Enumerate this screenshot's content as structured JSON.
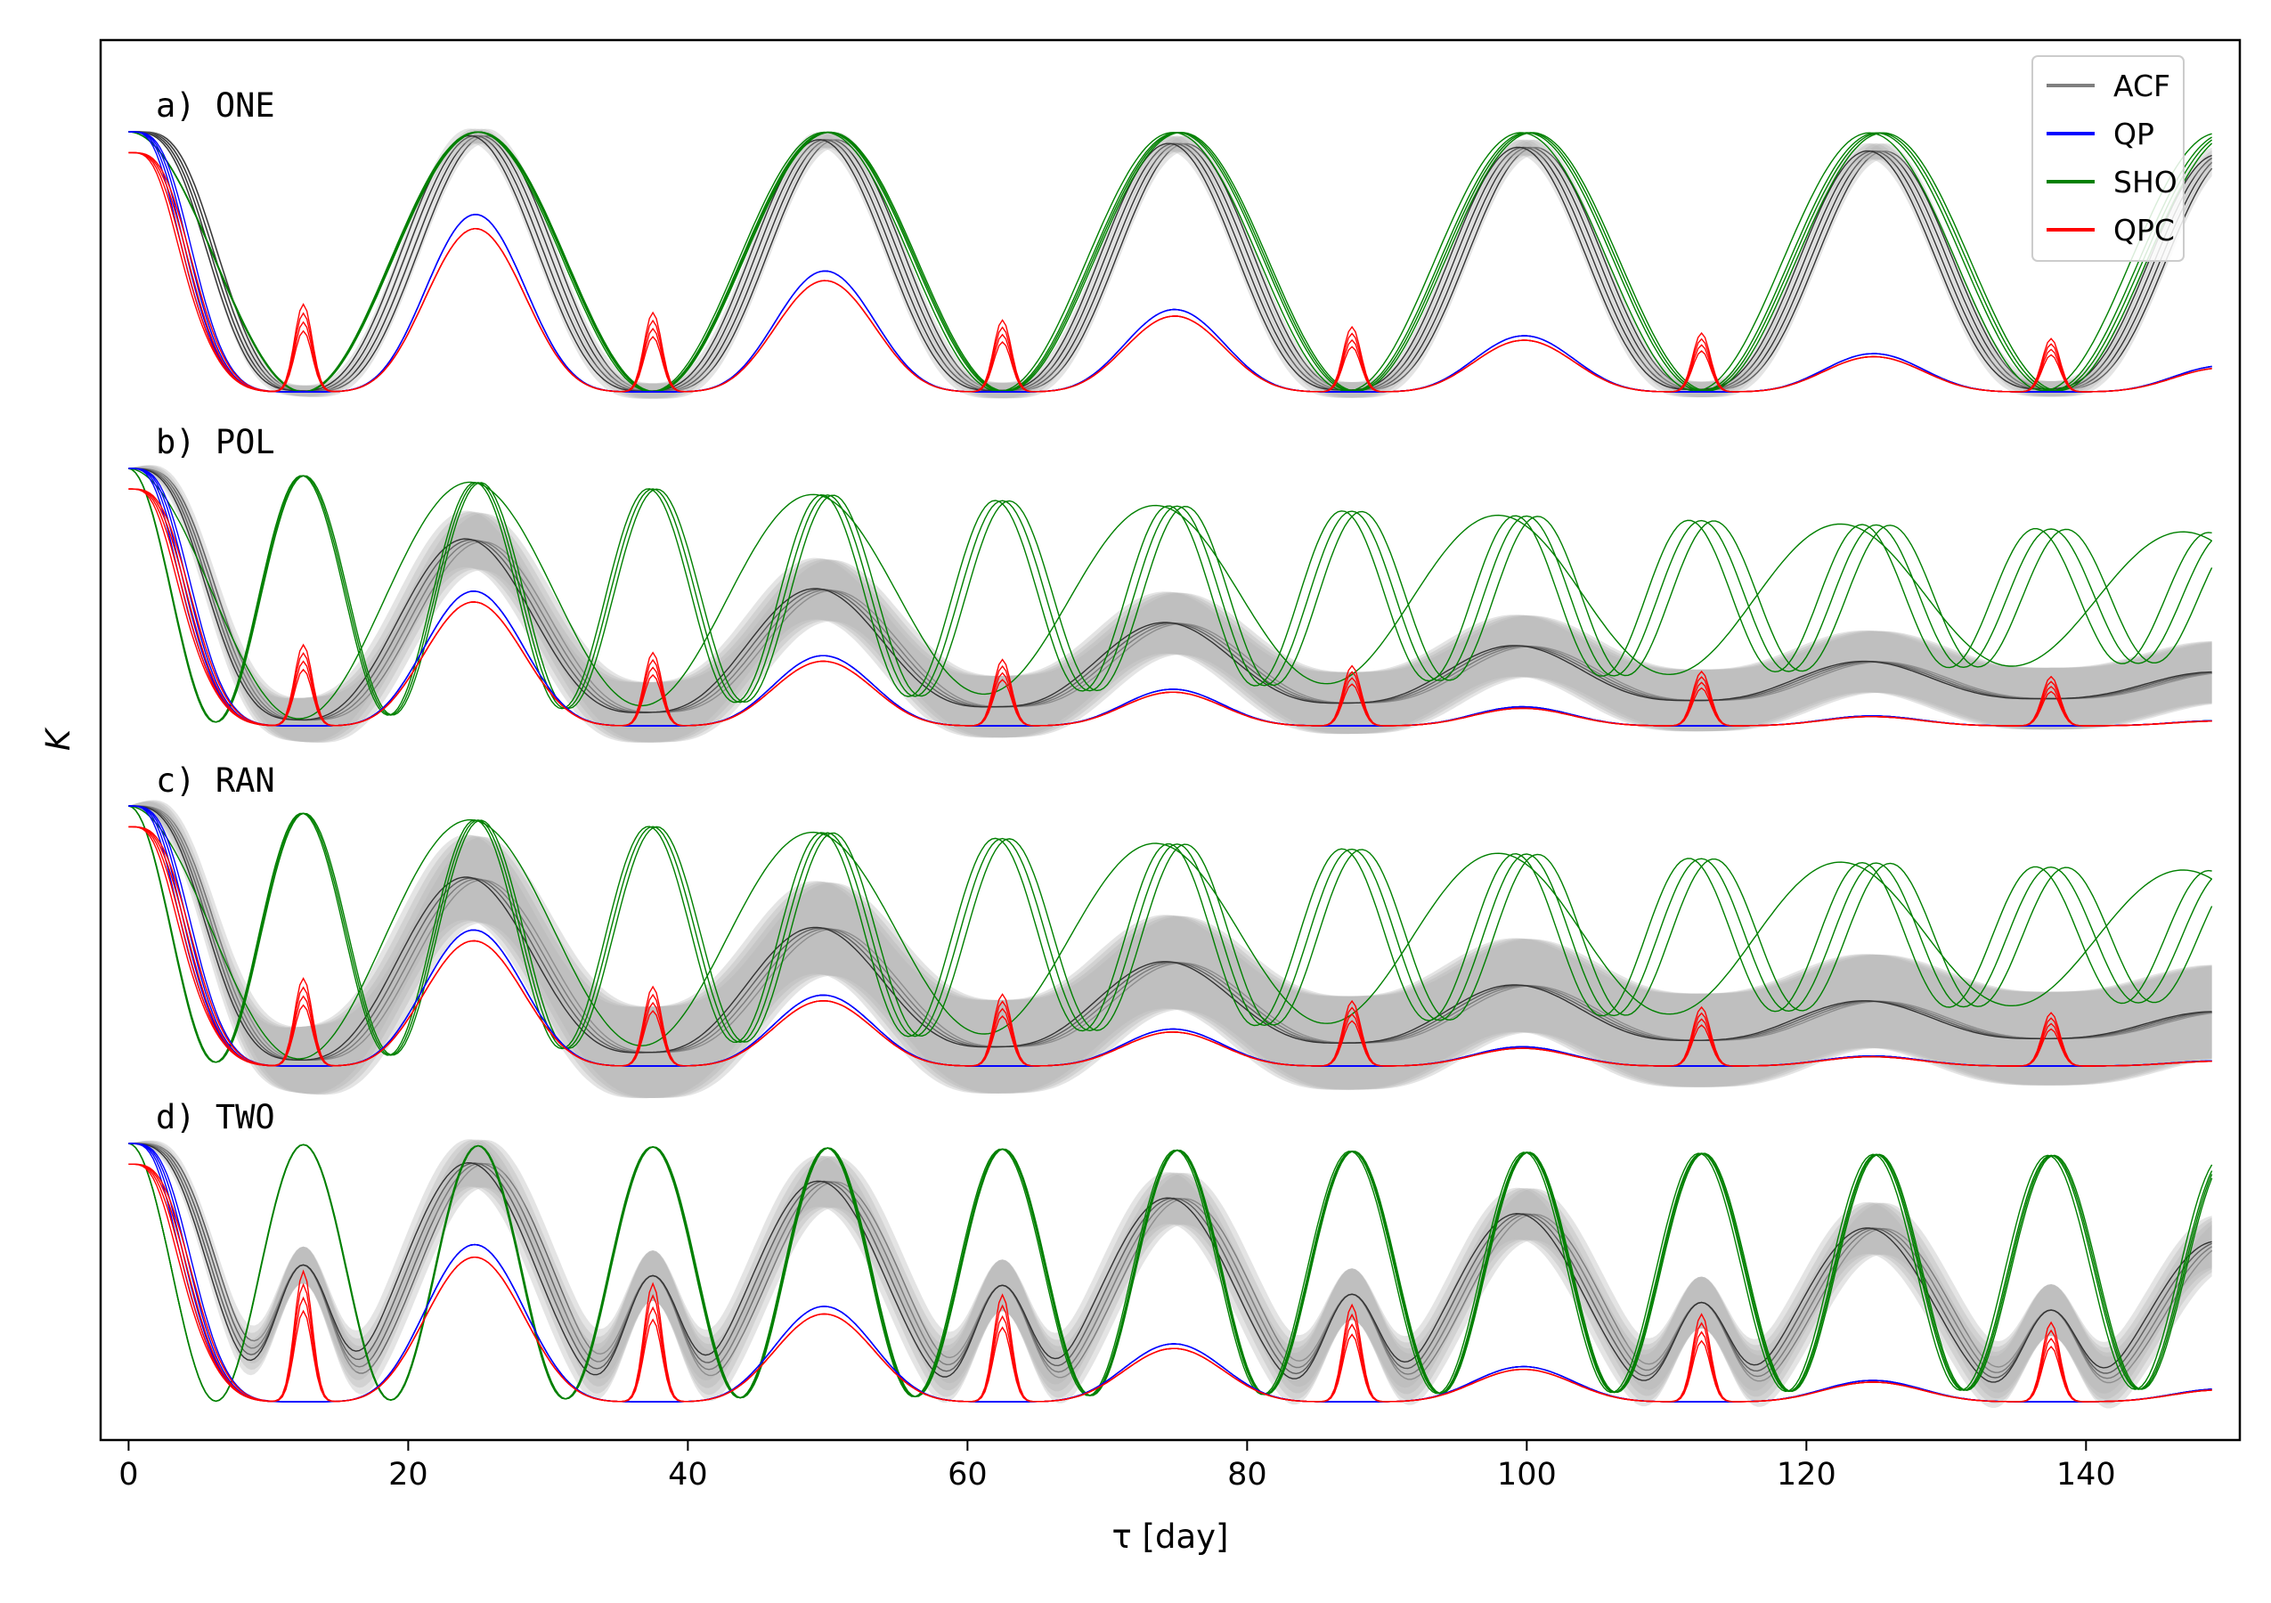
{
  "chart_data": {
    "type": "line",
    "xlabel": "τ [day]",
    "ylabel": "K",
    "xlim": [
      -2,
      151
    ],
    "x_ticks": [
      0,
      20,
      40,
      60,
      80,
      100,
      120,
      140
    ],
    "x_tick_labels": [
      "0",
      "20",
      "40",
      "60",
      "80",
      "100",
      "120",
      "140"
    ],
    "y_ticks_shown": false,
    "legend": {
      "position": "top-right",
      "entries": [
        {
          "name": "ACF",
          "color": "#7f7f7f"
        },
        {
          "name": "QP",
          "color": "#0000ff"
        },
        {
          "name": "SHO",
          "color": "#008000"
        },
        {
          "name": "QPC",
          "color": "#ff0000"
        }
      ]
    },
    "series_colors": {
      "ACF": "#7f7f7f",
      "ACF_band": "#b3b3b3",
      "QP": "#0000ff",
      "SHO": "#008000",
      "QPC": "#ff0000"
    },
    "period_days": 25,
    "panels": [
      {
        "id": "a",
        "label": "a) ONE",
        "acf_amp_at_150": 0.9,
        "qp_amp_at_150": 0.1,
        "qpc_half_period_bump": 0.3,
        "sho_amp_at_150": 0.99,
        "acf_band": 0.03
      },
      {
        "id": "b",
        "label": "b) POL",
        "acf_amp_at_150": 0.1,
        "qp_amp_at_150": 0.02,
        "qpc_half_period_bump": 0.28,
        "sho_amp_at_150": 0.5,
        "acf_band": 0.12
      },
      {
        "id": "c",
        "label": "c) RAN",
        "acf_amp_at_150": 0.1,
        "qp_amp_at_150": 0.02,
        "qpc_half_period_bump": 0.3,
        "sho_amp_at_150": 0.5,
        "acf_band": 0.18
      },
      {
        "id": "d",
        "label": "d) TWO",
        "acf_amp_at_150": 0.62,
        "qp_amp_at_150": 0.05,
        "qpc_half_period_bump": 0.45,
        "sho_amp_at_150": 0.9,
        "acf_band": 0.1
      }
    ]
  }
}
